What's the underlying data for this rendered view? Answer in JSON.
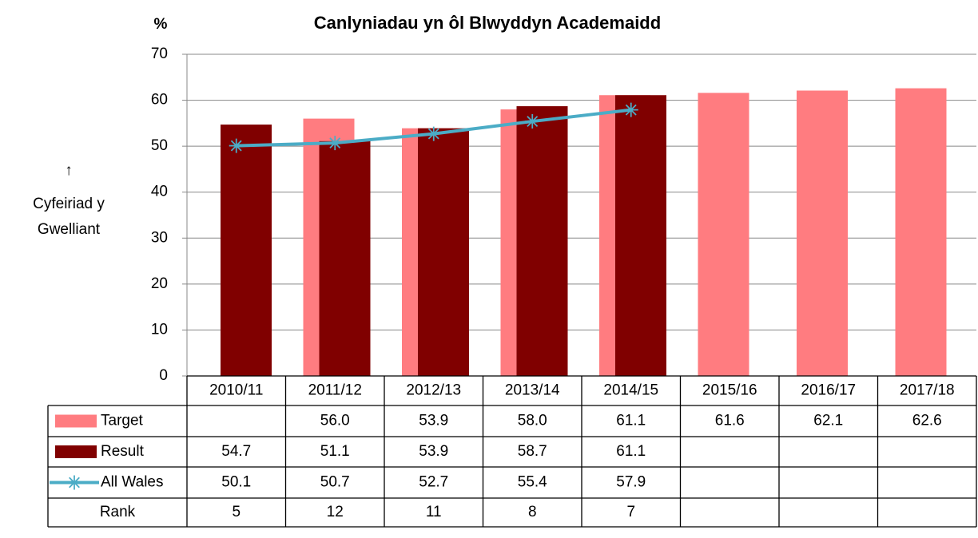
{
  "chart_data": {
    "type": "bar",
    "title": "Canlyniadau yn ôl Blwyddyn Academaidd",
    "y_label": "%",
    "annotation": [
      "↑",
      "Cyfeiriad y",
      "Gwelliant"
    ],
    "categories": [
      "2010/11",
      "2011/12",
      "2012/13",
      "2013/14",
      "2014/15",
      "2015/16",
      "2016/17",
      "2017/18"
    ],
    "series": [
      {
        "name": "Target",
        "type": "bar",
        "color": "#ff7c80",
        "values": [
          null,
          56.0,
          53.9,
          58.0,
          61.1,
          61.6,
          62.1,
          62.6
        ],
        "value_labels": [
          null,
          "56.0",
          "53.9",
          "58.0",
          "61.1",
          "61.6",
          "62.1",
          "62.6"
        ]
      },
      {
        "name": "Result",
        "type": "bar",
        "color": "#800000",
        "values": [
          54.7,
          51.1,
          53.9,
          58.7,
          61.1,
          null,
          null,
          null
        ],
        "value_labels": [
          "54.7",
          "51.1",
          "53.9",
          "58.7",
          "61.1",
          null,
          null,
          null
        ]
      },
      {
        "name": "All Wales",
        "type": "line",
        "color": "#4bacc6",
        "values": [
          50.1,
          50.7,
          52.7,
          55.4,
          57.9,
          null,
          null,
          null
        ],
        "value_labels": [
          "50.1",
          "50.7",
          "52.7",
          "55.4",
          "57.9",
          null,
          null,
          null
        ]
      }
    ],
    "rank": {
      "name": "Rank",
      "values": [
        5,
        12,
        11,
        8,
        7,
        null,
        null,
        null
      ]
    },
    "ylim": [
      0,
      70
    ],
    "yticks": [
      0,
      10,
      20,
      30,
      40,
      50,
      60,
      70
    ],
    "grid": true
  }
}
